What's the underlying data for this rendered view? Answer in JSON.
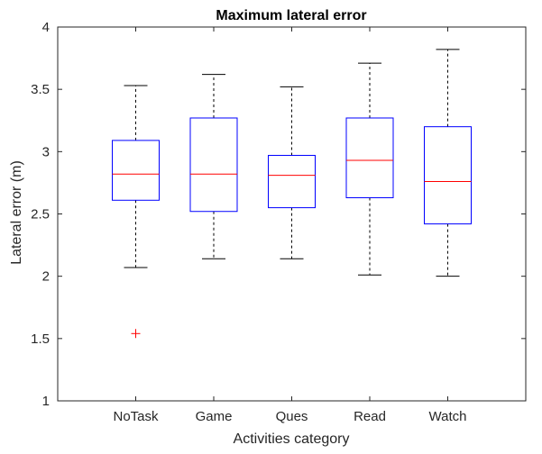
{
  "chart_data": {
    "type": "boxplot",
    "title": "Maximum lateral error",
    "xlabel": "Activities category",
    "ylabel": "Lateral error (m)",
    "ylim": [
      1,
      4
    ],
    "yticks": [
      1,
      1.5,
      2,
      2.5,
      3,
      3.5,
      4
    ],
    "ytick_labels": [
      "1",
      "1.5",
      "2",
      "2.5",
      "3",
      "3.5",
      "4"
    ],
    "grid": false,
    "categories": [
      "NoTask",
      "Game",
      "Ques",
      "Read",
      "Watch"
    ],
    "boxes": [
      {
        "name": "NoTask",
        "whisker_low": 2.07,
        "q1": 2.61,
        "median": 2.82,
        "q3": 3.09,
        "whisker_high": 3.53,
        "outliers": [
          1.54
        ]
      },
      {
        "name": "Game",
        "whisker_low": 2.14,
        "q1": 2.52,
        "median": 2.82,
        "q3": 3.27,
        "whisker_high": 3.62,
        "outliers": []
      },
      {
        "name": "Ques",
        "whisker_low": 2.14,
        "q1": 2.55,
        "median": 2.81,
        "q3": 2.97,
        "whisker_high": 3.52,
        "outliers": []
      },
      {
        "name": "Read",
        "whisker_low": 2.01,
        "q1": 2.63,
        "median": 2.93,
        "q3": 3.27,
        "whisker_high": 3.71,
        "outliers": []
      },
      {
        "name": "Watch",
        "whisker_low": 2.0,
        "q1": 2.42,
        "median": 2.76,
        "q3": 3.2,
        "whisker_high": 3.82,
        "outliers": []
      }
    ],
    "colors": {
      "box": "#0000ff",
      "median": "#ff0000",
      "whisker": "#000000",
      "outlier": "#ff0000",
      "axis": "#262626"
    }
  }
}
